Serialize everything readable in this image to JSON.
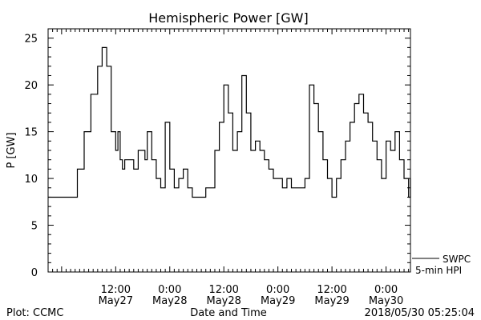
{
  "chart_data": {
    "type": "line",
    "title": "Hemispheric Power [GW]",
    "xlabel": "Date and Time",
    "ylabel": "P [GW]",
    "xlim": [
      "2018-05-26 21:00",
      "2018-05-30 05:25"
    ],
    "ylim": [
      0,
      26
    ],
    "yticks": [
      0,
      5,
      10,
      15,
      20,
      25
    ],
    "xticks": [
      {
        "time": "2018-05-27 12:00",
        "label": "12:00",
        "sublabel": "May27"
      },
      {
        "time": "2018-05-28 00:00",
        "label": "0:00",
        "sublabel": "May28"
      },
      {
        "time": "2018-05-28 12:00",
        "label": "12:00",
        "sublabel": "May28"
      },
      {
        "time": "2018-05-29 00:00",
        "label": "0:00",
        "sublabel": "May29"
      },
      {
        "time": "2018-05-29 12:00",
        "label": "12:00",
        "sublabel": "May29"
      },
      {
        "time": "2018-05-30 00:00",
        "label": "0:00",
        "sublabel": "May30"
      }
    ],
    "grid": false,
    "series": [
      {
        "name": "SWPC 5-min HPI",
        "color": "#000000",
        "x": [
          "2018-05-26 21:00",
          "2018-05-26 23:00",
          "2018-05-27 01:00",
          "2018-05-27 02:00",
          "2018-05-27 03:30",
          "2018-05-27 05:00",
          "2018-05-27 06:30",
          "2018-05-27 08:00",
          "2018-05-27 09:00",
          "2018-05-27 10:00",
          "2018-05-27 11:00",
          "2018-05-27 12:00",
          "2018-05-27 12:30",
          "2018-05-27 13:00",
          "2018-05-27 13:30",
          "2018-05-27 14:00",
          "2018-05-27 15:00",
          "2018-05-27 16:00",
          "2018-05-27 17:00",
          "2018-05-27 17:30",
          "2018-05-27 18:30",
          "2018-05-27 19:00",
          "2018-05-27 20:00",
          "2018-05-27 21:00",
          "2018-05-27 22:00",
          "2018-05-27 23:00",
          "2018-05-28 00:00",
          "2018-05-28 01:00",
          "2018-05-28 02:00",
          "2018-05-28 03:00",
          "2018-05-28 04:00",
          "2018-05-28 05:00",
          "2018-05-28 06:00",
          "2018-05-28 07:00",
          "2018-05-28 08:00",
          "2018-05-28 09:00",
          "2018-05-28 10:00",
          "2018-05-28 11:00",
          "2018-05-28 12:00",
          "2018-05-28 13:00",
          "2018-05-28 14:00",
          "2018-05-28 15:00",
          "2018-05-28 16:00",
          "2018-05-28 17:00",
          "2018-05-28 18:00",
          "2018-05-28 19:00",
          "2018-05-28 20:00",
          "2018-05-28 21:00",
          "2018-05-28 22:00",
          "2018-05-28 23:00",
          "2018-05-29 00:00",
          "2018-05-29 01:00",
          "2018-05-29 02:00",
          "2018-05-29 03:00",
          "2018-05-29 04:00",
          "2018-05-29 05:00",
          "2018-05-29 06:00",
          "2018-05-29 07:00",
          "2018-05-29 08:00",
          "2018-05-29 09:00",
          "2018-05-29 10:00",
          "2018-05-29 11:00",
          "2018-05-29 12:00",
          "2018-05-29 13:00",
          "2018-05-29 14:00",
          "2018-05-29 15:00",
          "2018-05-29 16:00",
          "2018-05-29 17:00",
          "2018-05-29 18:00",
          "2018-05-29 19:00",
          "2018-05-29 20:00",
          "2018-05-29 21:00",
          "2018-05-29 22:00",
          "2018-05-29 23:00",
          "2018-05-30 00:00",
          "2018-05-30 01:00",
          "2018-05-30 02:00",
          "2018-05-30 03:00",
          "2018-05-30 04:00",
          "2018-05-30 05:00",
          "2018-05-30 05:25"
        ],
        "y": [
          8,
          8,
          8,
          8,
          11,
          15,
          19,
          22,
          24,
          22,
          15,
          13,
          15,
          12,
          11,
          12,
          12,
          11,
          13,
          13,
          12,
          15,
          12,
          10,
          9,
          16,
          11,
          9,
          10,
          11,
          9,
          8,
          8,
          8,
          9,
          9,
          13,
          16,
          20,
          17,
          13,
          15,
          21,
          17,
          13,
          14,
          13,
          12,
          11,
          10,
          10,
          9,
          10,
          9,
          9,
          9,
          10,
          20,
          18,
          15,
          12,
          10,
          8,
          10,
          12,
          14,
          16,
          18,
          19,
          17,
          16,
          14,
          12,
          10,
          14,
          13,
          15,
          12,
          10,
          8,
          10
        ]
      }
    ]
  },
  "legend": {
    "source": "SWPC",
    "product": "5-min HPI"
  },
  "footer": {
    "plot_credit": "Plot: CCMC",
    "timestamp": "2018/05/30 05:25:04"
  }
}
